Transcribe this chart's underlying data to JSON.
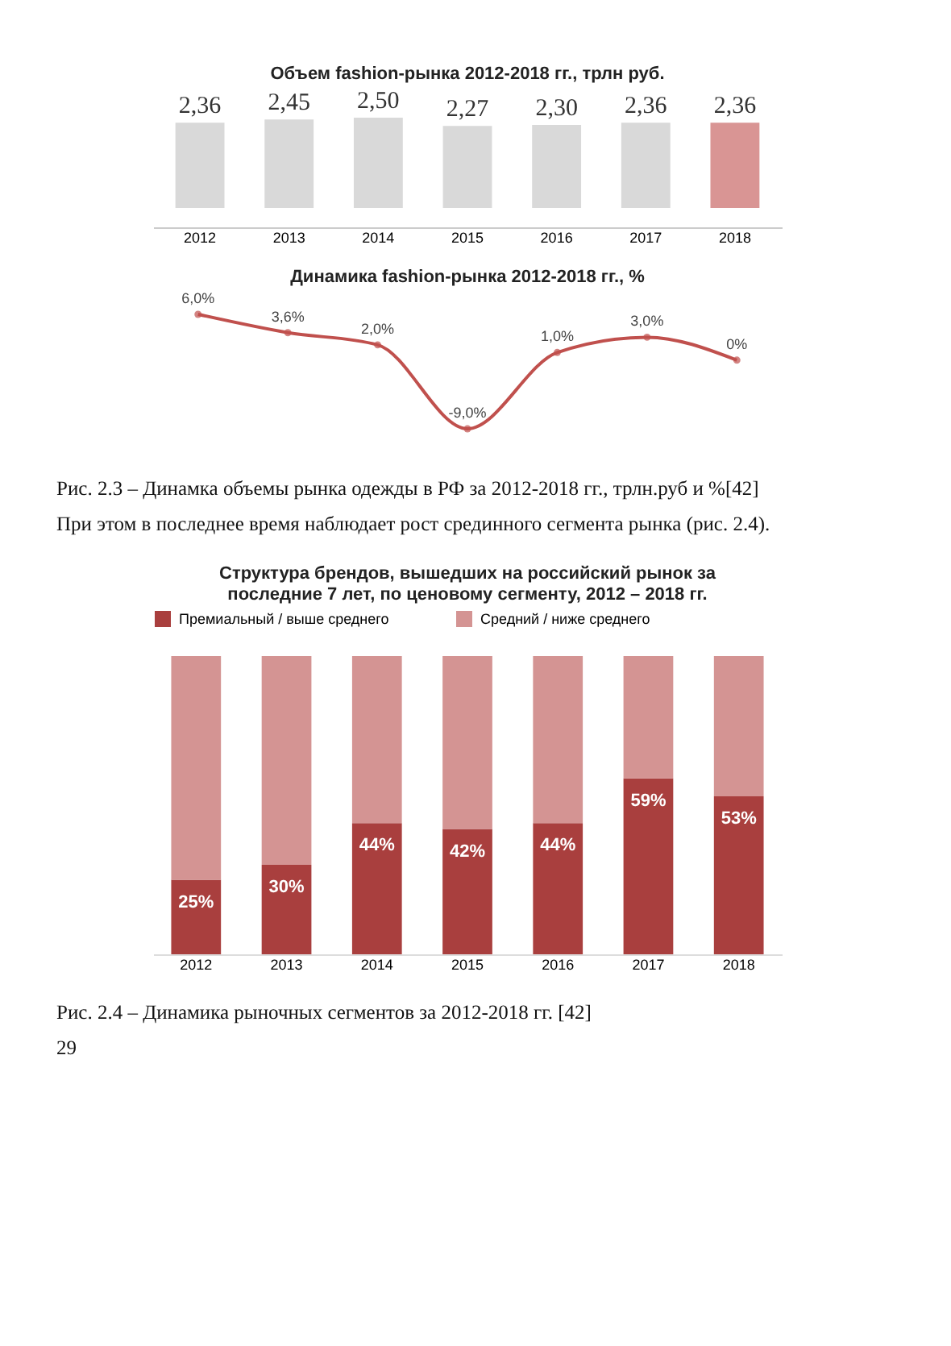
{
  "chart_data": [
    {
      "type": "bar",
      "title": "Объем fashion-рынка 2012-2018 гг., трлн руб.",
      "categories": [
        "2012",
        "2013",
        "2014",
        "2015",
        "2016",
        "2017",
        "2018"
      ],
      "values": [
        2.36,
        2.45,
        2.5,
        2.27,
        2.3,
        2.36,
        2.36
      ],
      "value_labels": [
        "2,36",
        "2,45",
        "2,50",
        "2,27",
        "2,30",
        "2,36",
        "2,36"
      ],
      "colors": [
        "#d9d9d9",
        "#d9d9d9",
        "#d9d9d9",
        "#d9d9d9",
        "#d9d9d9",
        "#d9d9d9",
        "#d99594"
      ],
      "tick_labels": "x",
      "grid": false
    },
    {
      "type": "line",
      "title": "Динамика fashion-рынка 2012-2018 гг., %",
      "categories": [
        "2012",
        "2013",
        "2014",
        "2015",
        "2016",
        "2017",
        "2018"
      ],
      "series": [
        {
          "color": "#c0504d",
          "values": [
            6.0,
            3.6,
            2.0,
            -9.0,
            1.0,
            3.0,
            0
          ],
          "value_labels": [
            "6,0%",
            "3,6%",
            "2,0%",
            "-9,0%",
            "1,0%",
            "3,0%",
            "0%"
          ]
        }
      ],
      "marker": "circle",
      "line_style": "solid",
      "tick_labels": false,
      "grid": false,
      "annotations": [
        "Рис. 2.3 – Динамка объемы рынка одежды в РФ за 2012-2018 гг., трлн.руб и %[42]",
        "При этом в последнее время наблюдает рост срединного сегмента рынка (рис. 2.4)."
      ]
    },
    {
      "type": "bar",
      "stacked": true,
      "title": "Структура брендов, вышедших на российский рынок за последние 7 лет, по ценовому сегменту, 2012 – 2018 гг.",
      "categories": [
        "2012",
        "2013",
        "2014",
        "2015",
        "2016",
        "2017",
        "2018"
      ],
      "series": [
        {
          "name": "Премиальный / выше среднего",
          "color": "#a93f3e",
          "values": [
            25,
            30,
            44,
            42,
            44,
            59,
            53
          ],
          "value_labels": [
            "25%",
            "30%",
            "44%",
            "42%",
            "44%",
            "59%",
            "53%"
          ]
        },
        {
          "name": "Средний / ниже среднего",
          "color": "#d49493",
          "values": [
            75,
            70,
            56,
            58,
            56,
            41,
            47
          ]
        }
      ],
      "ylim": [
        0,
        100
      ],
      "tick_labels": "x",
      "legend": "top",
      "annotations": [
        "Рис. 2.4 – Динамика рыночных сегментов за 2012-2018 гг. [42]",
        "29"
      ]
    }
  ]
}
